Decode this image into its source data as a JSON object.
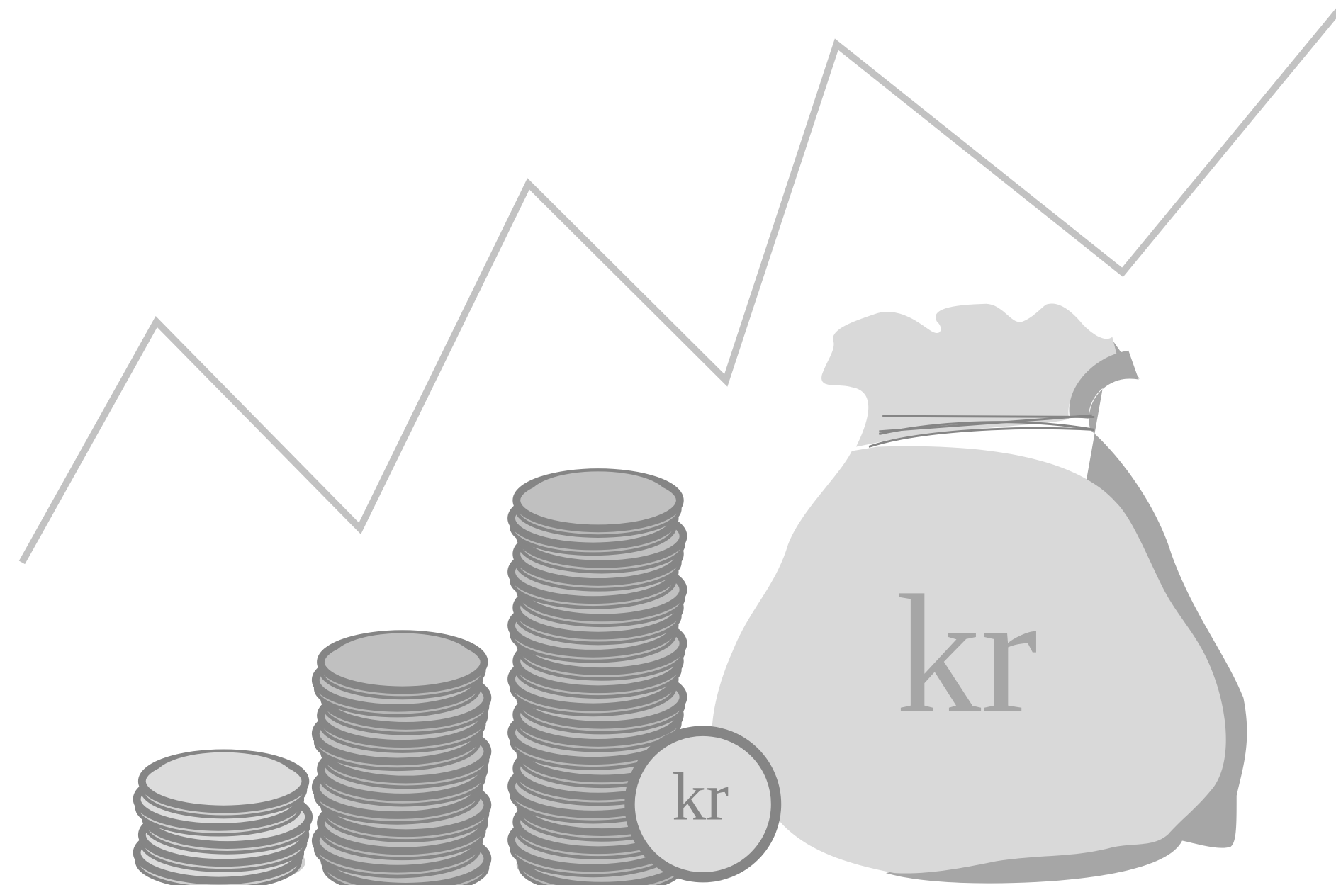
{
  "bag": {
    "label": "kr"
  },
  "coin": {
    "label": "kr"
  }
}
